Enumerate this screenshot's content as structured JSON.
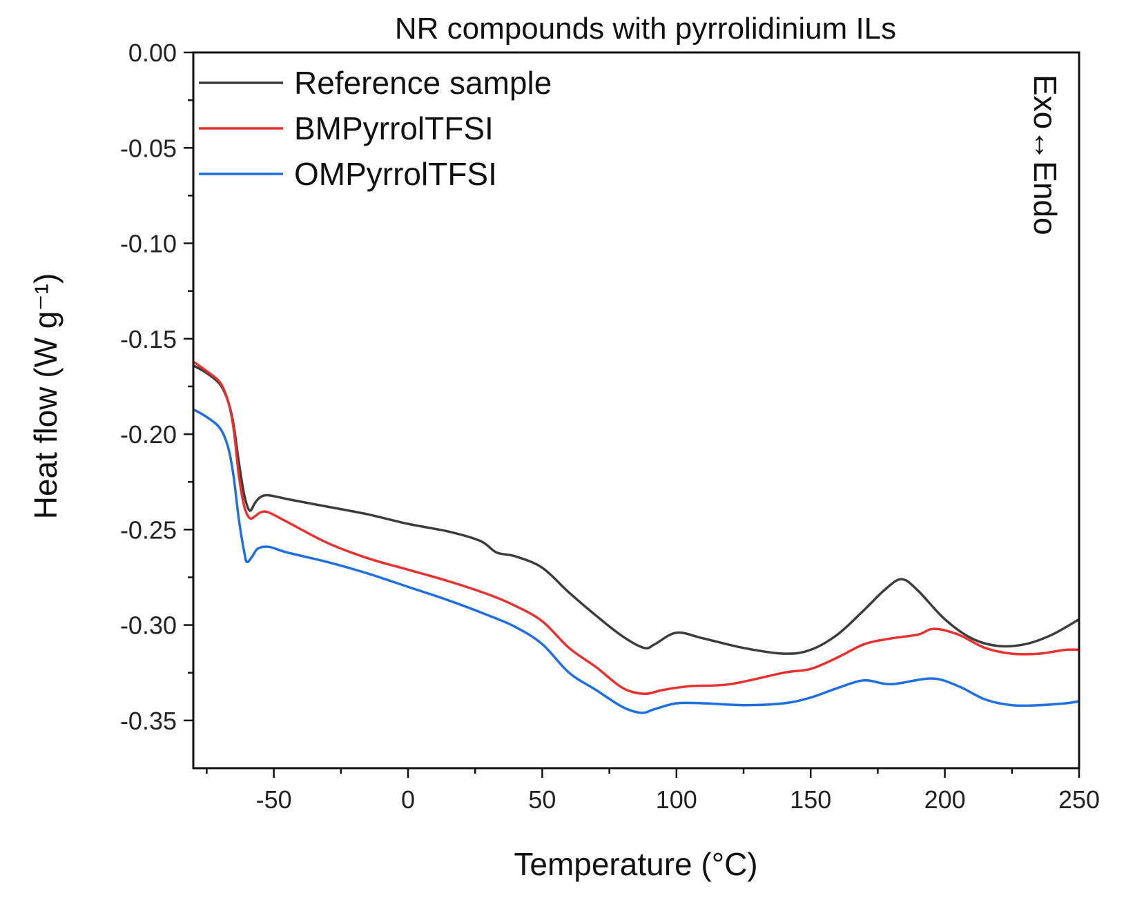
{
  "chart_data": {
    "type": "line",
    "title": "NR compounds with pyrrolidinium ILs",
    "xlabel": "Temperature (°C)",
    "ylabel": "Heat flow (W g⁻¹)",
    "xlim": [
      -80,
      250
    ],
    "ylim": [
      -0.375,
      0.0
    ],
    "xticks": [
      -50,
      0,
      50,
      100,
      150,
      200,
      250
    ],
    "yticks": [
      0.0,
      -0.05,
      -0.1,
      -0.15,
      -0.2,
      -0.25,
      -0.3,
      -0.35
    ],
    "ytick_labels": [
      "0.00",
      "-0.05",
      "-0.10",
      "-0.15",
      "-0.20",
      "-0.25",
      "-0.30",
      "-0.35"
    ],
    "xtick_labels": [
      "-50",
      "0",
      "50",
      "100",
      "150",
      "200",
      "250"
    ],
    "annotation": "Exo↔Endo",
    "legend_position": "top-left",
    "series": [
      {
        "name": "Reference sample",
        "color": "#3c3c3c",
        "x": [
          -80,
          -75,
          -70,
          -67,
          -65,
          -63,
          -61,
          -59,
          -57,
          -55,
          -52,
          -45,
          -30,
          -15,
          0,
          15,
          27,
          33,
          40,
          50,
          60,
          70,
          80,
          88,
          92,
          100,
          110,
          125,
          140,
          150,
          160,
          170,
          178,
          184,
          190,
          200,
          210,
          220,
          230,
          240,
          250
        ],
        "y": [
          -0.164,
          -0.168,
          -0.174,
          -0.183,
          -0.195,
          -0.215,
          -0.232,
          -0.24,
          -0.236,
          -0.233,
          -0.232,
          -0.234,
          -0.238,
          -0.242,
          -0.247,
          -0.251,
          -0.256,
          -0.262,
          -0.264,
          -0.27,
          -0.283,
          -0.295,
          -0.306,
          -0.312,
          -0.31,
          -0.304,
          -0.307,
          -0.312,
          -0.315,
          -0.313,
          -0.305,
          -0.292,
          -0.281,
          -0.276,
          -0.282,
          -0.297,
          -0.307,
          -0.311,
          -0.31,
          -0.305,
          -0.297
        ]
      },
      {
        "name": "BMPyrrolTFSI",
        "color": "#e8312f",
        "x": [
          -80,
          -75,
          -70,
          -67,
          -65,
          -63,
          -61,
          -59,
          -57,
          -55,
          -52,
          -45,
          -30,
          -15,
          0,
          15,
          30,
          40,
          50,
          60,
          70,
          80,
          88,
          95,
          105,
          120,
          140,
          150,
          160,
          170,
          180,
          190,
          196,
          205,
          215,
          225,
          235,
          245,
          250
        ],
        "y": [
          -0.162,
          -0.167,
          -0.173,
          -0.183,
          -0.197,
          -0.222,
          -0.238,
          -0.244,
          -0.243,
          -0.241,
          -0.241,
          -0.246,
          -0.257,
          -0.265,
          -0.271,
          -0.277,
          -0.284,
          -0.29,
          -0.298,
          -0.312,
          -0.322,
          -0.333,
          -0.336,
          -0.334,
          -0.332,
          -0.331,
          -0.325,
          -0.323,
          -0.317,
          -0.31,
          -0.307,
          -0.305,
          -0.302,
          -0.305,
          -0.312,
          -0.315,
          -0.315,
          -0.313,
          -0.313
        ]
      },
      {
        "name": "OMPyrrolTFSI",
        "color": "#1f6fe0",
        "x": [
          -80,
          -75,
          -70,
          -67,
          -65,
          -63,
          -61,
          -60,
          -58,
          -56,
          -52,
          -45,
          -30,
          -15,
          0,
          15,
          30,
          40,
          50,
          60,
          70,
          80,
          87,
          92,
          100,
          110,
          125,
          140,
          150,
          160,
          170,
          180,
          195,
          205,
          215,
          225,
          235,
          245,
          250
        ],
        "y": [
          -0.187,
          -0.191,
          -0.197,
          -0.207,
          -0.222,
          -0.245,
          -0.262,
          -0.267,
          -0.264,
          -0.26,
          -0.259,
          -0.262,
          -0.267,
          -0.273,
          -0.28,
          -0.287,
          -0.295,
          -0.301,
          -0.31,
          -0.325,
          -0.334,
          -0.343,
          -0.346,
          -0.344,
          -0.341,
          -0.341,
          -0.342,
          -0.341,
          -0.338,
          -0.333,
          -0.329,
          -0.331,
          -0.328,
          -0.332,
          -0.339,
          -0.342,
          -0.342,
          -0.341,
          -0.34
        ]
      }
    ]
  }
}
